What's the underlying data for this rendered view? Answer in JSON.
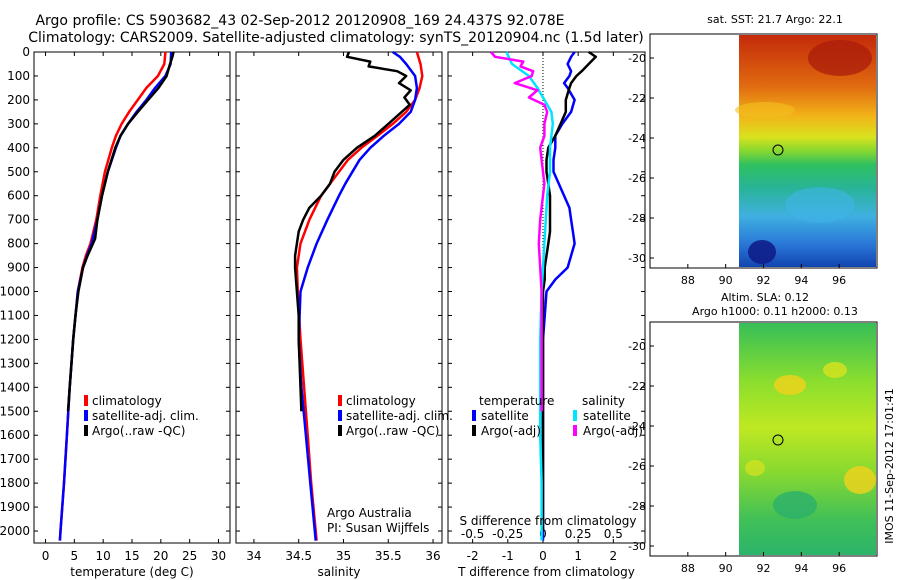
{
  "header": {
    "line1": "Argo profile: CS 5903682_43 02-Sep-2012 20120908_169 24.437S 92.078E",
    "line2": "Climatology: CARS2009. Satellite-adjusted climatology: synTS_20120904.nc (1.5d later)"
  },
  "side_note": "IMOS 11-Sep-2012 17:01:41",
  "colors": {
    "climatology": "#ff0000",
    "satellite": "#0000ff",
    "argo": "#000000",
    "argo_sal": "#ff00ff",
    "sat_sal": "#00e5ff"
  },
  "chart_data": [
    {
      "type": "line",
      "title": "",
      "xlabel": "temperature (deg C)",
      "ylabel": "",
      "xlim": [
        -2,
        32
      ],
      "ylim": [
        2050,
        0
      ],
      "xticks": [
        0,
        5,
        10,
        15,
        20,
        25,
        30
      ],
      "yticks": [
        0,
        100,
        200,
        300,
        400,
        500,
        600,
        700,
        800,
        900,
        1000,
        1100,
        1200,
        1300,
        1400,
        1500,
        1600,
        1700,
        1800,
        1900,
        2000
      ],
      "legend": [
        "climatology",
        "satellite-adj. clim.",
        "Argo(..raw -QC)"
      ],
      "series": [
        {
          "name": "climatology",
          "color": "#ff0000",
          "depth": [
            0,
            50,
            100,
            150,
            200,
            250,
            300,
            350,
            400,
            500,
            600,
            700,
            800,
            850,
            900,
            1000,
            1200,
            1400,
            1600,
            1800,
            2000,
            2040
          ],
          "values": [
            20.8,
            20.6,
            19.5,
            17.5,
            16.0,
            14.5,
            13.2,
            12.2,
            11.5,
            10.3,
            9.5,
            8.8,
            7.8,
            7.0,
            6.4,
            5.6,
            4.8,
            4.2,
            3.7,
            3.2,
            2.6,
            2.5
          ]
        },
        {
          "name": "satellite-adj. clim.",
          "color": "#0000ff",
          "depth": [
            0,
            50,
            100,
            150,
            200,
            250,
            300,
            350,
            400,
            500,
            600,
            700,
            800,
            850,
            900,
            1000,
            1200,
            1400,
            1600,
            1800,
            2000,
            2040
          ],
          "values": [
            21.8,
            21.7,
            20.8,
            19.0,
            17.5,
            15.8,
            14.3,
            13.0,
            12.2,
            10.8,
            9.8,
            9.0,
            8.0,
            7.2,
            6.5,
            5.6,
            4.8,
            4.2,
            3.7,
            3.2,
            2.6,
            2.5
          ]
        },
        {
          "name": "Argo(..raw -QC)",
          "color": "#000000",
          "depth": [
            0,
            20,
            50,
            100,
            150,
            200,
            250,
            300,
            350,
            400,
            500,
            600,
            700,
            780,
            850,
            900,
            1000,
            1100,
            1200,
            1300,
            1400,
            1500
          ],
          "values": [
            22.2,
            22.0,
            21.6,
            21.0,
            19.6,
            17.8,
            16.0,
            14.3,
            13.0,
            12.1,
            10.8,
            9.8,
            9.0,
            8.6,
            7.3,
            6.5,
            5.7,
            5.2,
            4.8,
            4.5,
            4.2,
            3.9
          ]
        }
      ]
    },
    {
      "type": "line",
      "title": "",
      "xlabel": "salinity",
      "ylabel": "",
      "xlim": [
        33.8,
        36.1
      ],
      "ylim": [
        2050,
        0
      ],
      "xticks": [
        34,
        34.5,
        35,
        35.5,
        36
      ],
      "xticklabels": [
        "34",
        "34.5",
        "35",
        "35.5",
        "36"
      ],
      "legend": [
        "climatology",
        "satellite-adj. clim.",
        "Argo(..raw -QC)"
      ],
      "annotations": [
        "Argo Australia",
        "PI: Susan Wijffels"
      ],
      "series": [
        {
          "name": "climatology",
          "color": "#ff0000",
          "depth": [
            0,
            50,
            100,
            150,
            200,
            250,
            300,
            350,
            400,
            450,
            500,
            550,
            600,
            700,
            800,
            900,
            1000,
            1200,
            1400,
            1600,
            1800,
            2000,
            2040
          ],
          "values": [
            35.82,
            35.86,
            35.88,
            35.85,
            35.8,
            35.7,
            35.55,
            35.38,
            35.2,
            35.05,
            34.95,
            34.85,
            34.75,
            34.62,
            34.52,
            34.48,
            34.49,
            34.52,
            34.56,
            34.6,
            34.64,
            34.69,
            34.7
          ]
        },
        {
          "name": "satellite-adj. clim.",
          "color": "#0000ff",
          "depth": [
            0,
            20,
            50,
            100,
            150,
            200,
            250,
            300,
            350,
            400,
            450,
            500,
            550,
            600,
            700,
            800,
            900,
            1000,
            1200,
            1400,
            1600,
            1800,
            2000,
            2040
          ],
          "values": [
            35.55,
            35.63,
            35.7,
            35.8,
            35.82,
            35.8,
            35.75,
            35.62,
            35.45,
            35.3,
            35.18,
            35.1,
            35.02,
            34.95,
            34.82,
            34.7,
            34.6,
            34.52,
            34.5,
            34.53,
            34.58,
            34.63,
            34.68,
            34.69
          ]
        },
        {
          "name": "Argo(..raw -QC)",
          "color": "#000000",
          "depth": [
            0,
            20,
            40,
            60,
            80,
            100,
            130,
            160,
            190,
            220,
            250,
            300,
            350,
            400,
            450,
            500,
            550,
            600,
            650,
            700,
            750,
            800,
            850,
            900,
            1000,
            1100,
            1200,
            1300,
            1400,
            1500
          ],
          "values": [
            35.06,
            35.04,
            35.3,
            35.28,
            35.6,
            35.7,
            35.62,
            35.75,
            35.68,
            35.74,
            35.65,
            35.5,
            35.35,
            35.15,
            35.0,
            34.9,
            34.85,
            34.75,
            34.62,
            34.55,
            34.5,
            34.48,
            34.46,
            34.46,
            34.48,
            34.5,
            34.5,
            34.51,
            34.52,
            34.53
          ]
        }
      ]
    },
    {
      "type": "line",
      "title": "",
      "xlabel": "T difference from climatology",
      "xlabel_top": "S difference from climatology",
      "ylabel": "",
      "xlim": [
        -2.7,
        2.9
      ],
      "ylim": [
        2050,
        0
      ],
      "xticks": [
        -2,
        -1,
        0,
        1,
        2
      ],
      "xticks_top": [
        -0.5,
        -0.25,
        0,
        0.25,
        0.5
      ],
      "xticklabels_top": [
        "-0.5",
        "-0.25",
        "0",
        "0.25",
        "0.5"
      ],
      "legend_temperature": "temperature",
      "legend_salinity": "salinity",
      "legend": [
        "satellite",
        "Argo(-adj)",
        "satellite",
        "Argo(-adj)"
      ],
      "series": [
        {
          "name": "temperature satellite",
          "color": "#0000ff",
          "depth": [
            0,
            20,
            50,
            80,
            100,
            130,
            150,
            200,
            250,
            300,
            350,
            400,
            450,
            500,
            550,
            600,
            650,
            700,
            750,
            800,
            850,
            900,
            950,
            1000,
            1200,
            1400,
            1600,
            1800,
            2000,
            2040
          ],
          "values": [
            0.9,
            0.8,
            0.7,
            0.8,
            0.75,
            0.6,
            0.7,
            0.9,
            0.8,
            0.55,
            0.35,
            0.35,
            0.3,
            0.3,
            0.45,
            0.6,
            0.75,
            0.8,
            0.85,
            0.9,
            0.8,
            0.7,
            0.35,
            0.1,
            0.0,
            0.0,
            0.0,
            0.0,
            0.0,
            0.0
          ]
        },
        {
          "name": "temperature Argo(-adj)",
          "color": "#000000",
          "depth": [
            0,
            20,
            50,
            80,
            100,
            130,
            150,
            200,
            250,
            300,
            350,
            400,
            450,
            500,
            550,
            600,
            650,
            700,
            750,
            800,
            850,
            900,
            950,
            1000,
            1100,
            1200,
            1400,
            1600,
            1800,
            2000
          ],
          "values": [
            1.3,
            1.5,
            1.3,
            1.1,
            0.95,
            0.8,
            0.75,
            0.65,
            0.65,
            0.5,
            0.35,
            0.15,
            0.1,
            0.1,
            0.15,
            0.2,
            0.2,
            0.2,
            0.2,
            0.15,
            0.1,
            0.05,
            0.05,
            0.0,
            0.0,
            0.0,
            0.0,
            0.0,
            0.0,
            0.0
          ]
        },
        {
          "name": "salinity satellite",
          "color": "#00e5ff",
          "depth": [
            0,
            50,
            100,
            150,
            200,
            250,
            300,
            350,
            400,
            450,
            500,
            550,
            600,
            700,
            800,
            900,
            1000,
            1200,
            1400,
            1600,
            1800,
            2000,
            2040
          ],
          "values": [
            -0.26,
            -0.22,
            -0.1,
            -0.04,
            0.01,
            0.06,
            0.07,
            0.06,
            0.05,
            0.05,
            0.05,
            0.04,
            0.03,
            0.02,
            0.01,
            0.0,
            -0.01,
            -0.02,
            -0.02,
            -0.02,
            -0.01,
            -0.01,
            -0.01
          ]
        },
        {
          "name": "salinity Argo(-adj)",
          "color": "#ff00ff",
          "depth": [
            0,
            20,
            40,
            60,
            80,
            100,
            130,
            160,
            190,
            220,
            250,
            300,
            350,
            400,
            450,
            500,
            550,
            600,
            700,
            800,
            900,
            1000,
            1200,
            1400,
            1500
          ],
          "values": [
            -0.37,
            -0.34,
            -0.14,
            -0.16,
            -0.07,
            -0.08,
            -0.2,
            -0.04,
            -0.1,
            0.01,
            0.03,
            0.01,
            0.01,
            -0.02,
            -0.01,
            0.0,
            0.01,
            0.0,
            -0.02,
            -0.03,
            -0.02,
            -0.01,
            -0.01,
            -0.01,
            -0.01
          ]
        }
      ]
    },
    {
      "type": "heatmap",
      "title": "sat. SST: 21.7  Argo: 22.1",
      "xlim": [
        86,
        98
      ],
      "ylim": [
        -30.5,
        -18.8
      ],
      "xticks": [
        88,
        90,
        92,
        94,
        96
      ],
      "yticks": [
        -20,
        -22,
        -24,
        -26,
        -28,
        -30
      ],
      "xticklabels": [
        "88",
        "90",
        "92",
        "94",
        "96"
      ],
      "yticklabels": [
        "-20",
        "-22",
        "-24",
        "-26",
        "-28",
        "-30"
      ],
      "land_edge_lon": 90,
      "marker": {
        "lon": 92.078,
        "lat": -24.437
      }
    },
    {
      "type": "heatmap",
      "title": "Altim. SLA: 0.12",
      "subtitle": "Argo h1000: 0.11  h2000: 0.13",
      "xlim": [
        86,
        98
      ],
      "ylim": [
        -30.5,
        -18.8
      ],
      "xticks": [
        88,
        90,
        92,
        94,
        96
      ],
      "yticks": [
        -20,
        -22,
        -24,
        -26,
        -28,
        -30
      ],
      "xticklabels": [
        "88",
        "90",
        "92",
        "94",
        "96"
      ],
      "yticklabels": [
        "-20",
        "-22",
        "-24",
        "-26",
        "-28",
        "-30"
      ],
      "land_edge_lon": 90,
      "marker": {
        "lon": 92.078,
        "lat": -24.437
      }
    }
  ]
}
